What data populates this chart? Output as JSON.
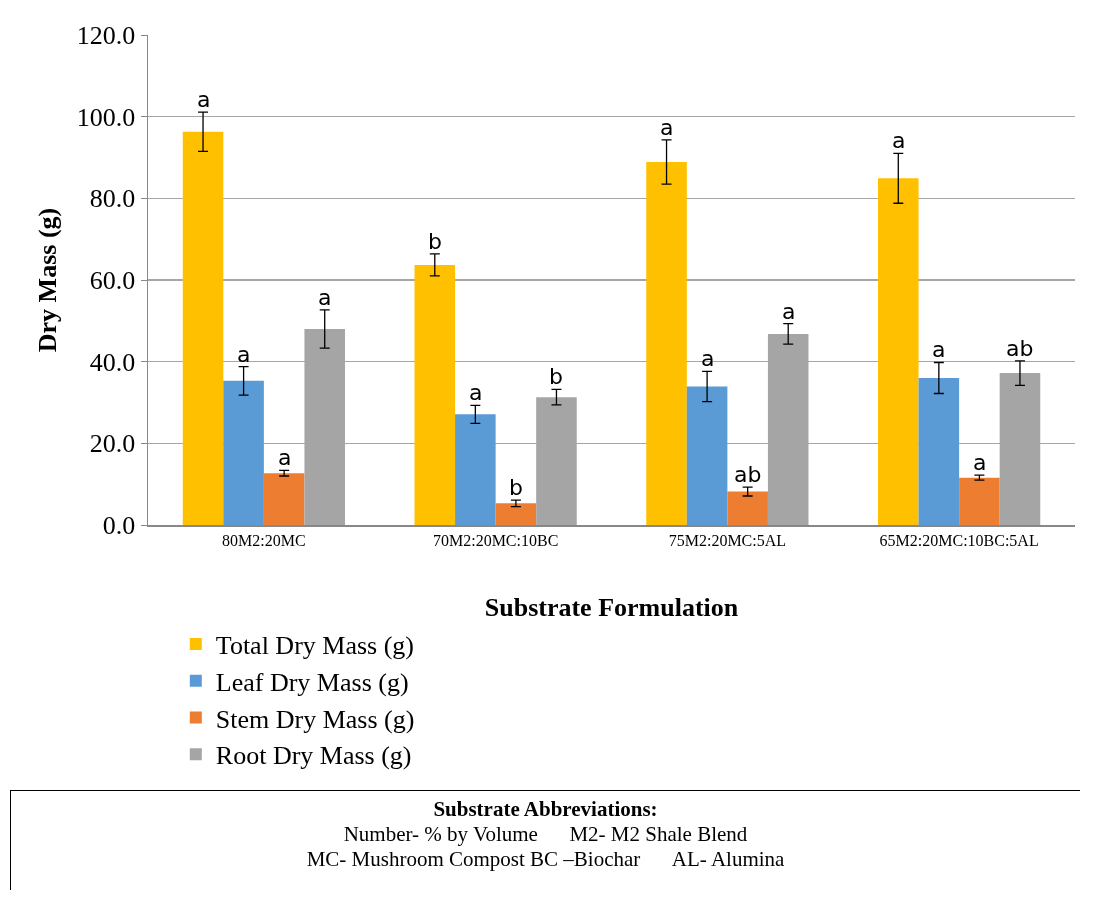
{
  "chart_data": {
    "type": "bar",
    "categories": [
      "80M2:20MC",
      "70M2:20MC:10BC",
      "75M2:20MC:5AL",
      "65M2:20MC:10BC:5AL"
    ],
    "series": [
      {
        "name": "Total Dry Mass (g)",
        "color": "#ffc000",
        "values": [
          96.3,
          63.7,
          88.9,
          84.9
        ],
        "errors": [
          4.8,
          2.7,
          5.4,
          6.1
        ],
        "value_labels": [
          "a",
          "b",
          "a",
          "a"
        ]
      },
      {
        "name": "Leaf Dry Mass (g)",
        "color": "#5b9bd5",
        "values": [
          35.3,
          27.1,
          33.9,
          36.0
        ],
        "errors": [
          3.5,
          2.2,
          3.7,
          3.8
        ],
        "value_labels": [
          "a",
          "a",
          "a",
          "a"
        ]
      },
      {
        "name": "Stem Dry Mass (g)",
        "color": "#ed7d31",
        "values": [
          12.7,
          5.3,
          8.2,
          11.6
        ],
        "errors": [
          0.7,
          0.8,
          1.1,
          0.6
        ],
        "value_labels": [
          "a",
          "b",
          "ab",
          "a"
        ]
      },
      {
        "name": "Root Dry Mass (g)",
        "color": "#a5a5a5",
        "values": [
          48.0,
          31.3,
          46.8,
          37.2
        ],
        "errors": [
          4.7,
          1.9,
          2.5,
          3.0
        ],
        "value_labels": [
          "a",
          "b",
          "a",
          "ab"
        ]
      }
    ],
    "xlabel": "Substrate Formulation",
    "ylabel": "Dry Mass (g)",
    "ylim": [
      0,
      120
    ],
    "yticks": [
      {
        "value": 0,
        "label": "0.0"
      },
      {
        "value": 20,
        "label": "20.0"
      },
      {
        "value": 40,
        "label": "40.0"
      },
      {
        "value": 60,
        "label": "60.0"
      },
      {
        "value": 80,
        "label": "80.0"
      },
      {
        "value": 100,
        "label": "100.0"
      },
      {
        "value": 120,
        "label": "120.0"
      }
    ],
    "grid": "y",
    "legend": "bottom",
    "annotations": [
      "Substrate Abbreviations:",
      "Number- % by Volume      M2- M2 Shale Blend",
      "MC- Mushroom Compost BC –Biochar      AL- Alumina"
    ]
  }
}
